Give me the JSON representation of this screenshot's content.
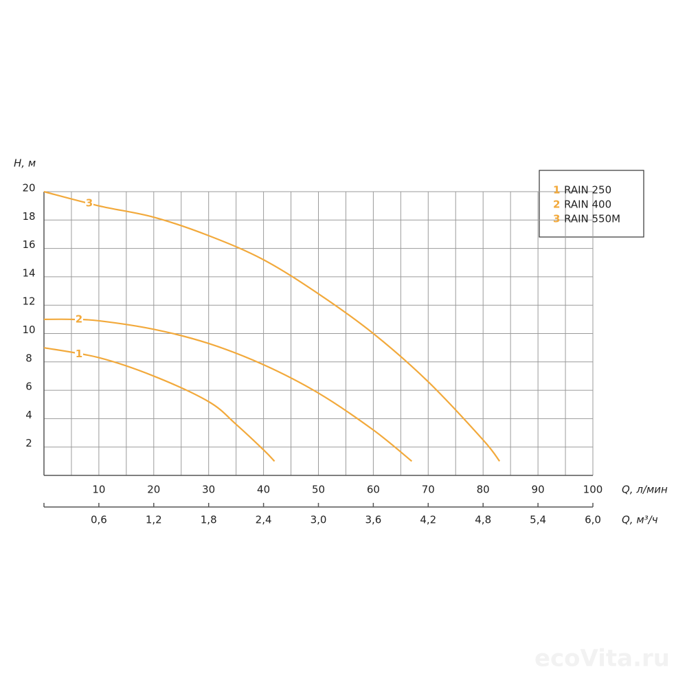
{
  "chart_data": {
    "type": "line",
    "ylabel": "H, м",
    "xlabel": "Q, л/мин",
    "x2label": "Q, м³/ч",
    "xlim": [
      0,
      100
    ],
    "xticks": [
      10,
      20,
      30,
      40,
      50,
      60,
      70,
      80,
      90,
      100
    ],
    "x2lim": [
      0,
      6
    ],
    "x2ticks": [
      {
        "value": 0.6,
        "label": "0,6"
      },
      {
        "value": 1.2,
        "label": "1,2"
      },
      {
        "value": 1.8,
        "label": "1,8"
      },
      {
        "value": 2.4,
        "label": "2,4"
      },
      {
        "value": 3.0,
        "label": "3,0"
      },
      {
        "value": 3.6,
        "label": "3,6"
      },
      {
        "value": 4.2,
        "label": "4,2"
      },
      {
        "value": 4.8,
        "label": "4,8"
      },
      {
        "value": 5.4,
        "label": "5,4"
      },
      {
        "value": 6.0,
        "label": "6,0"
      }
    ],
    "ylim": [
      0,
      20
    ],
    "yticks": [
      2,
      4,
      6,
      8,
      10,
      12,
      14,
      16,
      18,
      20
    ],
    "grid": true,
    "series": [
      {
        "label": "1",
        "name": "RAIN 250",
        "color": "#f2a93b",
        "x": [
          0,
          10,
          20,
          30,
          35,
          40,
          42
        ],
        "values": [
          9,
          8.3,
          7.0,
          5.2,
          3.6,
          1.8,
          1.0
        ]
      },
      {
        "label": "2",
        "name": "RAIN 400",
        "color": "#f2a93b",
        "x": [
          0,
          5,
          10,
          20,
          30,
          40,
          50,
          60,
          67
        ],
        "values": [
          11,
          11,
          10.9,
          10.3,
          9.3,
          7.8,
          5.8,
          3.2,
          1.0
        ]
      },
      {
        "label": "3",
        "name": "RAIN 550M",
        "color": "#f2a93b",
        "x": [
          0,
          10,
          20,
          30,
          40,
          50,
          60,
          70,
          80,
          83
        ],
        "values": [
          20,
          19.0,
          18.2,
          16.9,
          15.2,
          12.8,
          10.0,
          6.6,
          2.5,
          1.0
        ]
      }
    ],
    "watermark": "ecoVita.ru"
  }
}
